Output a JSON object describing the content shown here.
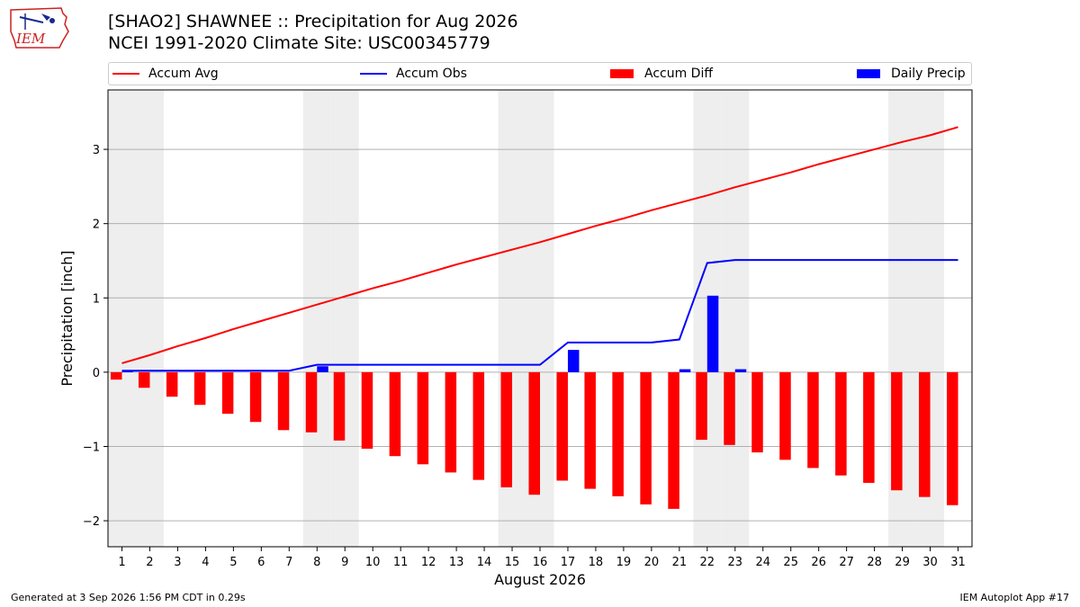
{
  "logo_text": "IEM",
  "title_line1": "[SHAO2] SHAWNEE :: Precipitation for Aug 2026",
  "title_line2": "NCEI 1991-2020 Climate Site: USC00345779",
  "footer_left": "Generated at 3 Sep 2026 1:56 PM CDT in 0.29s",
  "footer_right": "IEM Autoplot App #17",
  "colors": {
    "avg": "#ff0000",
    "obs": "#0000ff",
    "diff": "#ff0000",
    "daily": "#0000ff",
    "weekend": "#eeeeee",
    "grid": "#b0b0b0"
  },
  "chart_data": {
    "type": "bar",
    "xlabel": "August 2026",
    "ylabel": "Precipitation [inch]",
    "ylim": [
      -2.35,
      3.8
    ],
    "yticks": [
      -2,
      -1,
      0,
      1,
      2,
      3
    ],
    "ytick_labels": [
      "−2",
      "−1",
      "0",
      "1",
      "2",
      "3"
    ],
    "grid": "horizontal",
    "legend": {
      "placement": "top",
      "entries": [
        "Accum Avg",
        "Accum Obs",
        "Accum Diff",
        "Daily Precip"
      ]
    },
    "x": [
      1,
      2,
      3,
      4,
      5,
      6,
      7,
      8,
      9,
      10,
      11,
      12,
      13,
      14,
      15,
      16,
      17,
      18,
      19,
      20,
      21,
      22,
      23,
      24,
      25,
      26,
      27,
      28,
      29,
      30,
      31
    ],
    "x_labels": [
      "1",
      "2",
      "3",
      "4",
      "5",
      "6",
      "7",
      "8",
      "9",
      "10",
      "11",
      "12",
      "13",
      "14",
      "15",
      "16",
      "17",
      "18",
      "19",
      "20",
      "21",
      "22",
      "23",
      "24",
      "25",
      "26",
      "27",
      "28",
      "29",
      "30",
      "31"
    ],
    "weekend_days": [
      1,
      2,
      8,
      9,
      15,
      16,
      22,
      23,
      29,
      30
    ],
    "series": [
      {
        "name": "Accum Avg",
        "type": "line",
        "values": [
          0.12,
          0.23,
          0.35,
          0.46,
          0.58,
          0.69,
          0.8,
          0.91,
          1.02,
          1.13,
          1.23,
          1.34,
          1.45,
          1.55,
          1.65,
          1.75,
          1.86,
          1.97,
          2.07,
          2.18,
          2.28,
          2.38,
          2.49,
          2.59,
          2.69,
          2.8,
          2.9,
          3.0,
          3.1,
          3.19,
          3.3
        ]
      },
      {
        "name": "Accum Obs",
        "type": "line",
        "values": [
          0.02,
          0.02,
          0.02,
          0.02,
          0.02,
          0.02,
          0.02,
          0.1,
          0.1,
          0.1,
          0.1,
          0.1,
          0.1,
          0.1,
          0.1,
          0.1,
          0.4,
          0.4,
          0.4,
          0.4,
          0.44,
          1.47,
          1.51,
          1.51,
          1.51,
          1.51,
          1.51,
          1.51,
          1.51,
          1.51,
          1.51
        ]
      },
      {
        "name": "Accum Diff",
        "type": "bar",
        "values": [
          -0.1,
          -0.21,
          -0.33,
          -0.44,
          -0.56,
          -0.67,
          -0.78,
          -0.81,
          -0.92,
          -1.03,
          -1.13,
          -1.24,
          -1.35,
          -1.45,
          -1.55,
          -1.65,
          -1.46,
          -1.57,
          -1.67,
          -1.78,
          -1.84,
          -0.91,
          -0.98,
          -1.08,
          -1.18,
          -1.29,
          -1.39,
          -1.49,
          -1.59,
          -1.68,
          -1.79
        ]
      },
      {
        "name": "Daily Precip",
        "type": "bar",
        "values": [
          0.02,
          0,
          0,
          0,
          0,
          0,
          0,
          0.08,
          0,
          0,
          0,
          0,
          0,
          0,
          0,
          0,
          0.3,
          0,
          0,
          0,
          0.04,
          1.03,
          0.04,
          0,
          0,
          0,
          0,
          0,
          0,
          0,
          0
        ]
      }
    ]
  }
}
